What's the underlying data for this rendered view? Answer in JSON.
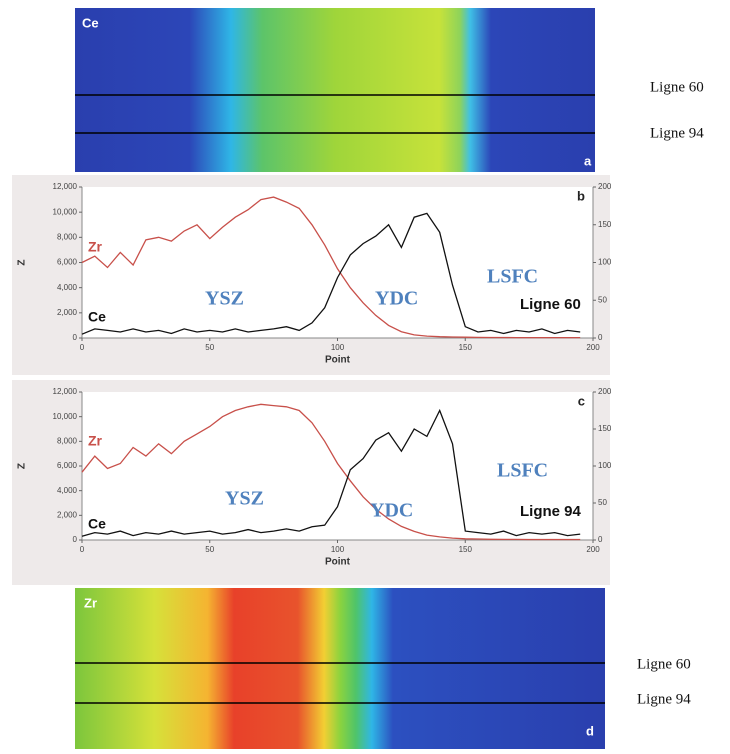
{
  "map_a": {
    "element": "Ce",
    "letter": "a",
    "lines": [
      "Ligne 60",
      "Ligne 94"
    ]
  },
  "map_d": {
    "element": "Zr",
    "letter": "d",
    "lines": [
      "Ligne 60",
      "Ligne 94"
    ]
  },
  "chart_data": [
    {
      "type": "line",
      "panel_label": "b",
      "xlabel": "Point",
      "ylabel": "Z",
      "xlim": [
        0,
        200
      ],
      "xticks": [
        0,
        50,
        100,
        150,
        200
      ],
      "ylim": [
        0,
        12000
      ],
      "yticks": [
        0,
        {
          "value": 2000,
          "label": "2,000"
        },
        {
          "value": 4000,
          "label": "4,000"
        },
        {
          "value": 6000,
          "label": "6,000"
        },
        {
          "value": 8000,
          "label": "8,000"
        },
        {
          "value": 10000,
          "label": "10,000"
        },
        {
          "value": 12000,
          "label": "12,000"
        }
      ],
      "y2lim": [
        0,
        200
      ],
      "y2ticks": [
        0,
        50,
        100,
        150,
        200
      ],
      "x": [
        0,
        5,
        10,
        15,
        20,
        25,
        30,
        35,
        40,
        45,
        50,
        55,
        60,
        65,
        70,
        75,
        80,
        85,
        90,
        95,
        100,
        105,
        110,
        115,
        120,
        125,
        130,
        135,
        140,
        145,
        150,
        155,
        160,
        165,
        170,
        175,
        180,
        185,
        190,
        195
      ],
      "series": [
        {
          "name": "Zr",
          "color": "#c8504a",
          "values": [
            6000,
            6500,
            5600,
            6800,
            5800,
            7800,
            8000,
            7700,
            8500,
            9000,
            7900,
            8800,
            9600,
            10200,
            11000,
            11200,
            10800,
            10300,
            9000,
            7400,
            5500,
            4000,
            2800,
            1800,
            1000,
            500,
            250,
            150,
            100,
            80,
            60,
            50,
            40,
            40,
            30,
            30,
            30,
            30,
            30,
            30
          ]
        },
        {
          "name": "Ce",
          "color": "#111111",
          "axis": "y2",
          "values": [
            5,
            12,
            10,
            8,
            12,
            8,
            10,
            6,
            12,
            8,
            10,
            8,
            12,
            8,
            10,
            12,
            15,
            10,
            20,
            40,
            80,
            110,
            125,
            135,
            150,
            120,
            160,
            165,
            140,
            70,
            15,
            8,
            10,
            6,
            10,
            8,
            12,
            6,
            10,
            8
          ]
        }
      ],
      "annotations": [
        "YSZ",
        "YDC",
        "LSFC",
        "Ligne 60"
      ]
    },
    {
      "type": "line",
      "panel_label": "c",
      "xlabel": "Point",
      "ylabel": "Z",
      "xlim": [
        0,
        200
      ],
      "xticks": [
        0,
        50,
        100,
        150,
        200
      ],
      "ylim": [
        0,
        12000
      ],
      "yticks": [
        0,
        {
          "value": 2000,
          "label": "2,000"
        },
        {
          "value": 4000,
          "label": "4,000"
        },
        {
          "value": 6000,
          "label": "6,000"
        },
        {
          "value": 8000,
          "label": "8,000"
        },
        {
          "value": 10000,
          "label": "10,000"
        },
        {
          "value": 12000,
          "label": "12,000"
        }
      ],
      "y2lim": [
        0,
        200
      ],
      "y2ticks": [
        0,
        50,
        100,
        150,
        200
      ],
      "x": [
        0,
        5,
        10,
        15,
        20,
        25,
        30,
        35,
        40,
        45,
        50,
        55,
        60,
        65,
        70,
        75,
        80,
        85,
        90,
        95,
        100,
        105,
        110,
        115,
        120,
        125,
        130,
        135,
        140,
        145,
        150,
        155,
        160,
        165,
        170,
        175,
        180,
        185,
        190,
        195
      ],
      "series": [
        {
          "name": "Zr",
          "color": "#c8504a",
          "values": [
            5500,
            6800,
            5800,
            6200,
            7500,
            6800,
            7800,
            7000,
            8000,
            8600,
            9200,
            10000,
            10500,
            10800,
            11000,
            10900,
            10800,
            10500,
            9500,
            8000,
            6200,
            4800,
            3500,
            2500,
            1700,
            1100,
            700,
            400,
            250,
            150,
            100,
            80,
            60,
            50,
            50,
            40,
            40,
            40,
            40,
            40
          ]
        },
        {
          "name": "Ce",
          "color": "#111111",
          "axis": "y2",
          "values": [
            5,
            10,
            8,
            12,
            6,
            10,
            8,
            12,
            8,
            10,
            12,
            8,
            10,
            14,
            10,
            12,
            15,
            12,
            18,
            20,
            45,
            95,
            110,
            135,
            145,
            120,
            150,
            140,
            175,
            130,
            12,
            10,
            8,
            12,
            6,
            10,
            8,
            10,
            6,
            8
          ]
        }
      ],
      "annotations": [
        "YSZ",
        "YDC",
        "LSFC",
        "Ligne 94"
      ]
    }
  ]
}
